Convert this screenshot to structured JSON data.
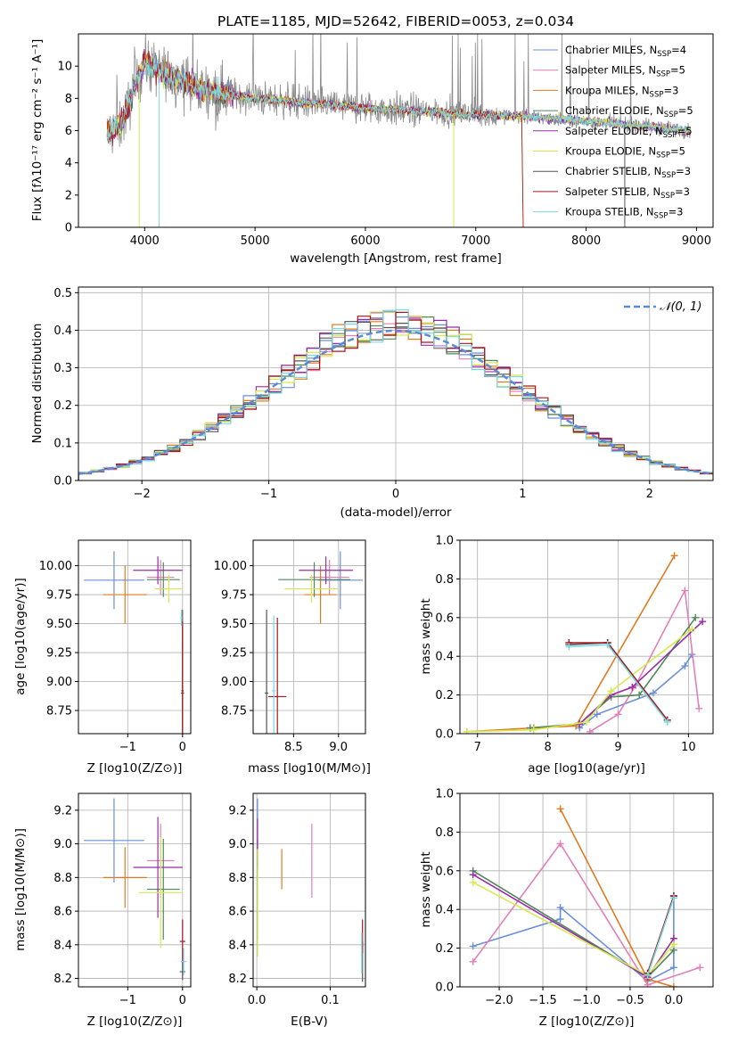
{
  "chart_data": [
    {
      "type": "line",
      "title": "PLATE=1185, MJD=52642, FIBERID=0053, z=0.034",
      "xlabel": "wavelength [Angstrom, rest frame]",
      "ylabel": "Flux [fλ10⁻¹⁷ erg cm⁻² s⁻¹ A⁻¹]",
      "xlim": [
        3400,
        9150
      ],
      "ylim": [
        0,
        12
      ],
      "xticks": [
        "4000",
        "5000",
        "6000",
        "7000",
        "8000",
        "9000"
      ],
      "yticks": [
        "0",
        "2",
        "4",
        "6",
        "8",
        "10"
      ],
      "legend_position": "top-right",
      "legend": [
        {
          "name": "Chabrier MILES, N",
          "sub": "SSP",
          "eq": "=4"
        },
        {
          "name": "Salpeter MILES, N",
          "sub": "SSP",
          "eq": "=5"
        },
        {
          "name": "Kroupa MILES, N",
          "sub": "SSP",
          "eq": "=3"
        },
        {
          "name": "Chabrier ELODIE, N",
          "sub": "SSP",
          "eq": "=5"
        },
        {
          "name": "Salpeter ELODIE, N",
          "sub": "SSP",
          "eq": "=5"
        },
        {
          "name": "Kroupa ELODIE, N",
          "sub": "SSP",
          "eq": "=5"
        },
        {
          "name": "Chabrier STELIB, N",
          "sub": "SSP",
          "eq": "=3"
        },
        {
          "name": "Salpeter STELIB, N",
          "sub": "SSP",
          "eq": "=3"
        },
        {
          "name": "Kroupa STELIB, N",
          "sub": "SSP",
          "eq": "=3"
        }
      ],
      "continuum": {
        "x": [
          3700,
          3800,
          3900,
          4000,
          4100,
          4300,
          4500,
          4800,
          5000,
          5500,
          6000,
          6500,
          7000,
          7400,
          8000,
          8500,
          8900
        ],
        "y": [
          5.9,
          6.5,
          8.5,
          10.2,
          9.8,
          9.2,
          8.6,
          8.2,
          8.0,
          7.7,
          7.4,
          7.2,
          7.0,
          6.9,
          6.6,
          6.3,
          6.0
        ]
      }
    },
    {
      "type": "histogram",
      "xlabel": "(data-model)/error",
      "ylabel": "Normed distribution",
      "xlim": [
        -2.5,
        2.5
      ],
      "ylim": [
        0,
        0.515
      ],
      "xticks": [
        "−2",
        "−1",
        "0",
        "1",
        "2"
      ],
      "yticks": [
        "0.0",
        "0.1",
        "0.2",
        "0.3",
        "0.4",
        "0.5"
      ],
      "legend": "𝒩(0, 1)",
      "bins_start": -2.5,
      "bin_width": 0.1,
      "reference_curve": "standard normal"
    },
    {
      "type": "scatter",
      "xlabel": "Z [log10(Z/Z⊙)]",
      "ylabel": "age  [log10(age/yr)]",
      "xlim": [
        -1.9,
        0.15
      ],
      "ylim": [
        8.55,
        10.22
      ],
      "xticks": [
        "−1",
        "0"
      ],
      "yticks": [
        "8.75",
        "9.00",
        "9.25",
        "9.50",
        "9.75",
        "10.00"
      ],
      "points": [
        {
          "x": -1.25,
          "xerr": 0.55,
          "y": 9.875,
          "yerr": 0.25
        },
        {
          "x": -0.4,
          "xerr": 0.25,
          "y": 9.9,
          "yerr": 0.15
        },
        {
          "x": -1.05,
          "xerr": 0.4,
          "y": 9.75,
          "yerr": 0.25
        },
        {
          "x": -0.35,
          "xerr": 0.3,
          "y": 9.88,
          "yerr": 0.15
        },
        {
          "x": -0.45,
          "xerr": 0.45,
          "y": 9.96,
          "yerr": 0.12
        },
        {
          "x": -0.25,
          "xerr": 0.25,
          "y": 9.8,
          "yerr": 0.12
        },
        {
          "x": 0.0,
          "xerr": 0.03,
          "y": 8.9,
          "yerr": 0.72
        },
        {
          "x": 0.0,
          "xerr": 0.02,
          "y": 8.92,
          "yerr": 0.6
        },
        {
          "x": -0.02,
          "xerr": 0.02,
          "y": 9.55,
          "yerr": 0.07
        }
      ]
    },
    {
      "type": "scatter",
      "xlabel": "mass [log10(M/M⊙)]",
      "ylabel": "",
      "xlim": [
        8.05,
        9.3
      ],
      "ylim": [
        8.55,
        10.22
      ],
      "xticks": [
        "8.5",
        "9.0"
      ],
      "yticks": [
        "8.75",
        "9.00",
        "9.25",
        "9.50",
        "9.75",
        "10.00"
      ],
      "points": [
        {
          "x": 9.02,
          "xerr": 0.25,
          "y": 9.875,
          "yerr": 0.25
        },
        {
          "x": 8.9,
          "xerr": 0.22,
          "y": 9.9,
          "yerr": 0.15
        },
        {
          "x": 8.8,
          "xerr": 0.18,
          "y": 9.75,
          "yerr": 0.25
        },
        {
          "x": 8.73,
          "xerr": 0.4,
          "y": 9.88,
          "yerr": 0.15
        },
        {
          "x": 8.86,
          "xerr": 0.3,
          "y": 9.96,
          "yerr": 0.12
        },
        {
          "x": 8.7,
          "xerr": 0.3,
          "y": 9.8,
          "yerr": 0.12
        },
        {
          "x": 8.2,
          "xerr": 0.02,
          "y": 8.9,
          "yerr": 0.72
        },
        {
          "x": 8.32,
          "xerr": 0.1,
          "y": 8.87,
          "yerr": 0.68
        },
        {
          "x": 8.28,
          "xerr": 0.02,
          "y": 8.92,
          "yerr": 0.65
        }
      ]
    },
    {
      "type": "line",
      "xlabel": "age  [log10(age/yr)]",
      "ylabel": "mass weight",
      "xlim": [
        6.75,
        10.35
      ],
      "ylim": [
        0,
        1.0
      ],
      "xticks": [
        "7",
        "8",
        "9",
        "10"
      ],
      "yticks": [
        "0.0",
        "0.2",
        "0.4",
        "0.6",
        "0.8",
        "1.0"
      ],
      "series": [
        {
          "x": [
            8.45,
            8.7,
            9.5,
            9.95,
            10.05
          ],
          "y": [
            0.03,
            0.1,
            0.21,
            0.35,
            0.41
          ]
        },
        {
          "x": [
            8.6,
            9.0,
            9.25,
            9.95,
            10.15
          ],
          "y": [
            0.01,
            0.1,
            0.25,
            0.74,
            0.13
          ]
        },
        {
          "x": [
            6.85,
            7.8,
            8.4,
            9.8
          ],
          "y": [
            0.01,
            0.03,
            0.04,
            0.92
          ]
        },
        {
          "x": [
            7.75,
            8.45,
            8.9,
            9.3,
            10.1
          ],
          "y": [
            0.03,
            0.05,
            0.19,
            0.2,
            0.6
          ]
        },
        {
          "x": [
            8.45,
            8.9,
            9.2,
            10.2
          ],
          "y": [
            0.05,
            0.2,
            0.24,
            0.58
          ]
        },
        {
          "x": [
            6.85,
            7.8,
            8.55,
            8.9,
            10.05
          ],
          "y": [
            0.01,
            0.02,
            0.06,
            0.22,
            0.54
          ]
        },
        {
          "x": [
            8.3,
            8.85,
            9.7
          ],
          "y": [
            0.46,
            0.47,
            0.07
          ]
        },
        {
          "x": [
            8.3,
            8.85,
            9.7
          ],
          "y": [
            0.47,
            0.47,
            0.07
          ]
        },
        {
          "x": [
            8.3,
            8.85,
            9.7
          ],
          "y": [
            0.45,
            0.46,
            0.06
          ]
        }
      ]
    },
    {
      "type": "scatter",
      "xlabel": "Z [log10(Z/Z⊙)]",
      "ylabel": "mass [log10(M/M⊙)]",
      "xlim": [
        -1.9,
        0.15
      ],
      "ylim": [
        8.15,
        9.3
      ],
      "xticks": [
        "−1",
        "0"
      ],
      "yticks": [
        "8.2",
        "8.4",
        "8.6",
        "8.8",
        "9.0",
        "9.2"
      ],
      "points": [
        {
          "x": -1.25,
          "xerr": 0.55,
          "y": 9.02,
          "yerr": 0.25
        },
        {
          "x": -0.4,
          "xerr": 0.25,
          "y": 8.9,
          "yerr": 0.22
        },
        {
          "x": -1.05,
          "xerr": 0.4,
          "y": 8.8,
          "yerr": 0.18
        },
        {
          "x": -0.35,
          "xerr": 0.3,
          "y": 8.73,
          "yerr": 0.3
        },
        {
          "x": -0.45,
          "xerr": 0.45,
          "y": 8.86,
          "yerr": 0.3
        },
        {
          "x": -0.4,
          "xerr": 0.4,
          "y": 8.71,
          "yerr": 0.33
        },
        {
          "x": 0.0,
          "xerr": 0.05,
          "y": 8.24,
          "yerr": 0.05
        },
        {
          "x": 0.0,
          "xerr": 0.05,
          "y": 8.42,
          "yerr": 0.13
        },
        {
          "x": 0.02,
          "xerr": 0.05,
          "y": 8.3,
          "yerr": 0.08
        }
      ]
    },
    {
      "type": "scatter",
      "xlabel": "E(B-V)",
      "ylabel": "",
      "xlim": [
        -0.005,
        0.148
      ],
      "ylim": [
        8.15,
        9.3
      ],
      "xticks": [
        "0.0",
        "0.1"
      ],
      "yticks": [
        "8.2",
        "8.4",
        "8.6",
        "8.8",
        "9.0",
        "9.2"
      ],
      "points": [
        {
          "x": 0.001,
          "y": 9.02,
          "yerr": 0.25
        },
        {
          "x": 0.075,
          "y": 8.9,
          "yerr": 0.22
        },
        {
          "x": 0.034,
          "y": 8.85,
          "yerr": 0.12
        },
        {
          "x": 0.001,
          "y": 8.73,
          "yerr": 0.3
        },
        {
          "x": 0.001,
          "y": 9.0,
          "yerr": 0.15
        },
        {
          "x": 0.001,
          "y": 8.65,
          "yerr": 0.32
        },
        {
          "x": 0.144,
          "y": 8.3,
          "yerr": 0.12
        },
        {
          "x": 0.144,
          "y": 8.45,
          "yerr": 0.1
        },
        {
          "x": 0.143,
          "y": 8.35,
          "yerr": 0.12
        }
      ]
    },
    {
      "type": "line",
      "xlabel": "Z [log10(Z/Z⊙)]",
      "ylabel": "mass weight",
      "xlim": [
        -2.45,
        0.45
      ],
      "ylim": [
        0,
        1.0
      ],
      "xticks": [
        "−2.0",
        "−1.5",
        "−1.0",
        "−0.5",
        "0.0"
      ],
      "yticks": [
        "0.0",
        "0.2",
        "0.4",
        "0.6",
        "0.8",
        "1.0"
      ],
      "series": [
        {
          "x": [
            -2.3,
            -1.3,
            -1.3,
            -0.3,
            0.0,
            0.0
          ],
          "y": [
            0.21,
            0.35,
            0.41,
            0.03,
            0.1,
            0.46
          ]
        },
        {
          "x": [
            -2.3,
            -1.3,
            -0.3,
            0.3
          ],
          "y": [
            0.13,
            0.74,
            0.01,
            0.1
          ]
        },
        {
          "x": [
            -1.3,
            -0.3,
            0.0
          ],
          "y": [
            0.92,
            0.04,
            0.0
          ]
        },
        {
          "x": [
            -2.3,
            -0.3,
            0.0
          ],
          "y": [
            0.6,
            0.05,
            0.19
          ]
        },
        {
          "x": [
            -2.3,
            -0.3,
            0.0
          ],
          "y": [
            0.58,
            0.05,
            0.25
          ]
        },
        {
          "x": [
            -2.3,
            -0.3,
            0.0
          ],
          "y": [
            0.54,
            0.06,
            0.22
          ]
        },
        {
          "x": [
            -0.3,
            0.0
          ],
          "y": [
            0.07,
            0.47
          ]
        },
        {
          "x": [
            -0.3,
            0.0
          ],
          "y": [
            0.07,
            0.47
          ]
        },
        {
          "x": [
            -0.3,
            0.0
          ],
          "y": [
            0.06,
            0.46
          ]
        }
      ]
    }
  ],
  "colors": [
    "#6a8fd8",
    "#e37fb6",
    "#e07b20",
    "#50885a",
    "#9a2ca8",
    "#d6ea50",
    "#555555",
    "#a8161e",
    "#7ad8e0"
  ],
  "dark_line_color": "#8a8a8a"
}
